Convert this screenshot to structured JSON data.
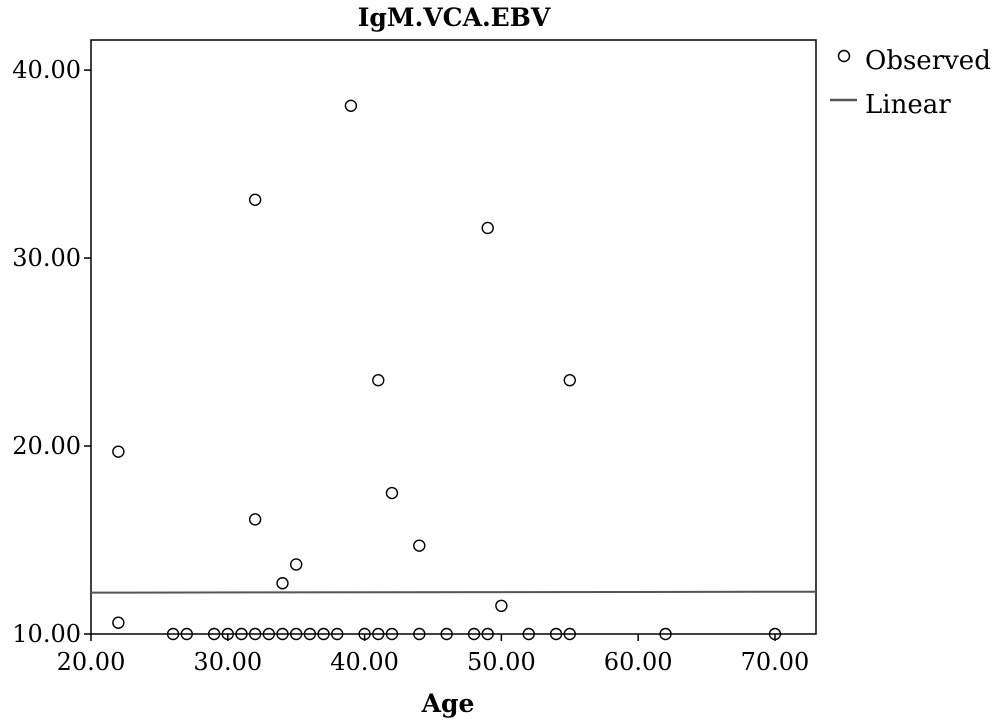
{
  "chart_data": {
    "type": "scatter",
    "title": "IgM.VCA.EBV",
    "xlabel": "Age",
    "ylabel": "",
    "xlim": [
      20,
      73
    ],
    "ylim": [
      10,
      41.6
    ],
    "x_ticks": [
      "20.00",
      "30.00",
      "40.00",
      "50.00",
      "60.00",
      "70.00"
    ],
    "y_ticks": [
      "10.00",
      "20.00",
      "30.00",
      "40.00"
    ],
    "legend": {
      "position": "right",
      "entries": [
        {
          "label": "Observed",
          "marker": "circle"
        },
        {
          "label": "Linear",
          "marker": "line"
        }
      ]
    },
    "series": [
      {
        "name": "Observed",
        "type": "scatter",
        "points": [
          {
            "x": 22,
            "y": 19.7
          },
          {
            "x": 22,
            "y": 10.6
          },
          {
            "x": 26,
            "y": 10
          },
          {
            "x": 27,
            "y": 10
          },
          {
            "x": 29,
            "y": 10
          },
          {
            "x": 30,
            "y": 10
          },
          {
            "x": 31,
            "y": 10
          },
          {
            "x": 32,
            "y": 33.1
          },
          {
            "x": 32,
            "y": 16.1
          },
          {
            "x": 32,
            "y": 10
          },
          {
            "x": 33,
            "y": 10
          },
          {
            "x": 34,
            "y": 12.7
          },
          {
            "x": 34,
            "y": 10
          },
          {
            "x": 35,
            "y": 13.7
          },
          {
            "x": 35,
            "y": 10
          },
          {
            "x": 36,
            "y": 10
          },
          {
            "x": 37,
            "y": 10
          },
          {
            "x": 38,
            "y": 10
          },
          {
            "x": 39,
            "y": 38.1
          },
          {
            "x": 40,
            "y": 10
          },
          {
            "x": 41,
            "y": 23.5
          },
          {
            "x": 41,
            "y": 10
          },
          {
            "x": 42,
            "y": 17.5
          },
          {
            "x": 42,
            "y": 10
          },
          {
            "x": 44,
            "y": 14.7
          },
          {
            "x": 44,
            "y": 10
          },
          {
            "x": 46,
            "y": 10
          },
          {
            "x": 48,
            "y": 10
          },
          {
            "x": 49,
            "y": 31.6
          },
          {
            "x": 49,
            "y": 10
          },
          {
            "x": 50,
            "y": 11.5
          },
          {
            "x": 52,
            "y": 10
          },
          {
            "x": 54,
            "y": 10
          },
          {
            "x": 55,
            "y": 23.5
          },
          {
            "x": 55,
            "y": 10
          },
          {
            "x": 62,
            "y": 10
          },
          {
            "x": 70,
            "y": 10
          }
        ]
      },
      {
        "name": "Linear",
        "type": "line",
        "points": [
          {
            "x": 20,
            "y": 12.2
          },
          {
            "x": 73,
            "y": 12.25
          }
        ]
      }
    ],
    "grid": false
  },
  "colors": {
    "marker_stroke": "#000000",
    "fit_line": "#555555",
    "axis": "#000000"
  }
}
